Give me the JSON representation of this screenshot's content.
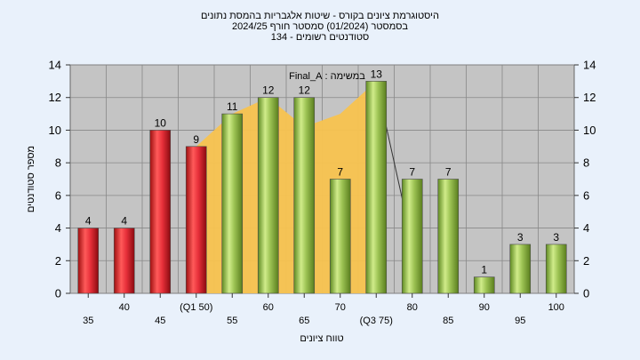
{
  "chart_data": {
    "type": "bar",
    "title_lines": [
      "היסטוגרמת ציונים בקורס - שיטות אלגבריות בהמסת נתונים",
      "בסמסטר (01/2024) סמסטר חורף 2024/25",
      "סטודנטים רשומים - 134"
    ],
    "annotation": "במשימה : Final_A",
    "xlabel": "טווח ציונים",
    "ylabel": "מספר סטודנטים",
    "ylim": [
      0,
      14
    ],
    "yticks": [
      0,
      2,
      4,
      6,
      8,
      10,
      12,
      14
    ],
    "categories": [
      "35",
      "40",
      "45",
      "(Q1 50)",
      "55",
      "60",
      "65",
      "70",
      "(Q3 75)",
      "80",
      "85",
      "90",
      "95",
      "100"
    ],
    "values": [
      4,
      4,
      10,
      9,
      11,
      12,
      12,
      7,
      13,
      7,
      7,
      1,
      3,
      3
    ],
    "bar_colors": [
      "red",
      "red",
      "red",
      "red",
      "green",
      "green",
      "green",
      "green",
      "green",
      "green",
      "green",
      "green",
      "green",
      "green"
    ],
    "colors": {
      "red": "#e8303a",
      "green": "#9cc253",
      "area": "#f8c34f",
      "plot_bg": "#c4c4c4",
      "page_bg": "#e9f1fb"
    },
    "area_range": [
      "(Q1 50)",
      "(Q3 75)"
    ],
    "area_values": [
      9,
      11,
      12,
      10.2,
      11,
      13
    ],
    "grid": true
  }
}
